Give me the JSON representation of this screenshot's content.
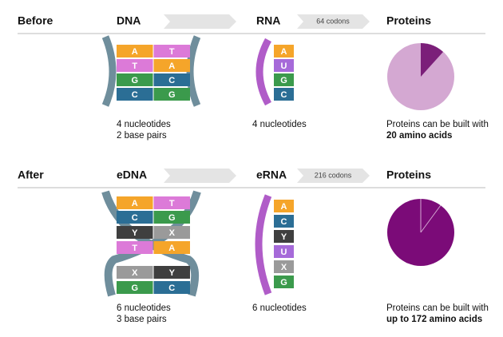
{
  "rows": [
    {
      "label": "Before",
      "dna": {
        "title": "DNA",
        "pairs": [
          [
            "A",
            "T"
          ],
          [
            "T",
            "A"
          ],
          [
            "G",
            "C"
          ],
          [
            "C",
            "G"
          ]
        ],
        "caption": [
          "4 nucleotides",
          "2 base pairs"
        ]
      },
      "codons": "64 codons",
      "rna": {
        "title": "RNA",
        "bases": [
          "A",
          "U",
          "G",
          "C"
        ],
        "caption": "4 nucleotides"
      },
      "proteins": {
        "title": "Proteins",
        "text": "Proteins can be built with",
        "bold": "20 amino acids"
      }
    },
    {
      "label": "After",
      "dna": {
        "title": "eDNA",
        "pairs": [
          [
            "A",
            "T"
          ],
          [
            "C",
            "G"
          ],
          [
            "Y",
            "X"
          ],
          [
            "T",
            "A"
          ],
          [
            "X",
            "Y"
          ],
          [
            "G",
            "C"
          ]
        ],
        "caption": [
          "6 nucleotides",
          "3 base pairs"
        ]
      },
      "codons": "216 codons",
      "rna": {
        "title": "eRNA",
        "bases": [
          "A",
          "C",
          "Y",
          "U",
          "X",
          "G"
        ],
        "caption": "6 nucleotides"
      },
      "proteins": {
        "title": "Proteins",
        "text": "Proteins can be built with",
        "bold": "up to 172 amino acids"
      }
    }
  ]
}
